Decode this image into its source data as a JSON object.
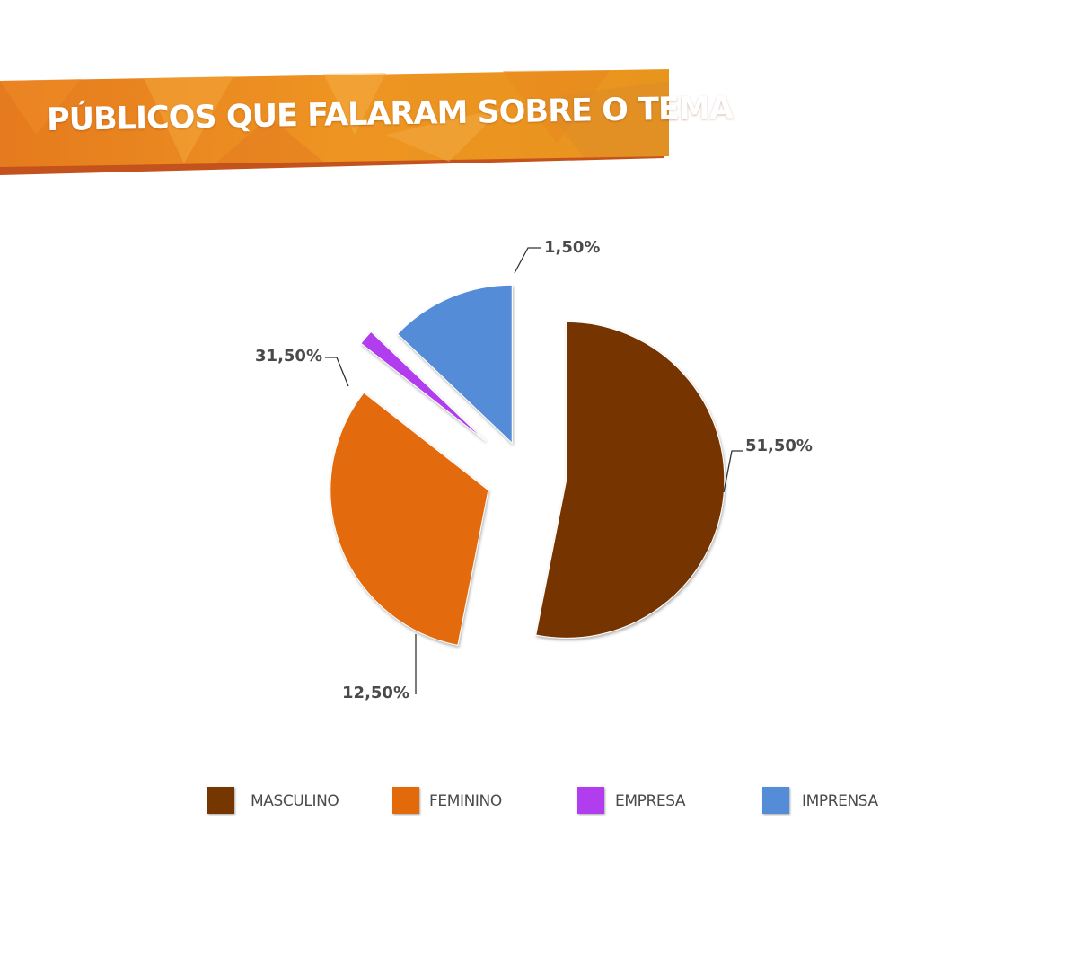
{
  "header": {
    "title": "PÚBLICOS QUE FALARAM SOBRE O TEMA"
  },
  "colors": {
    "banner_primary": "#E8821E",
    "banner_dark": "#C4521C",
    "text": "#4a4a4a"
  },
  "chart_data": {
    "type": "pie",
    "style": "exploded",
    "title": "",
    "labels": [
      "MASCULINO",
      "FEMININO",
      "EMPRESA",
      "IMPRENSA"
    ],
    "values": [
      51.5,
      31.5,
      1.5,
      12.5
    ],
    "value_labels": [
      "51,50%",
      "31,50%",
      "1,50%",
      "12,50%"
    ],
    "colors": [
      "#763600",
      "#E36A0A",
      "#B13DEF",
      "#548CD8"
    ],
    "legend_position": "bottom"
  },
  "legend": {
    "items": [
      {
        "label": "MASCULINO",
        "color": "#763600"
      },
      {
        "label": "FEMININO",
        "color": "#E36A0A"
      },
      {
        "label": "EMPRESA",
        "color": "#B13DEF"
      },
      {
        "label": "IMPRENSA",
        "color": "#548CD8"
      }
    ]
  }
}
